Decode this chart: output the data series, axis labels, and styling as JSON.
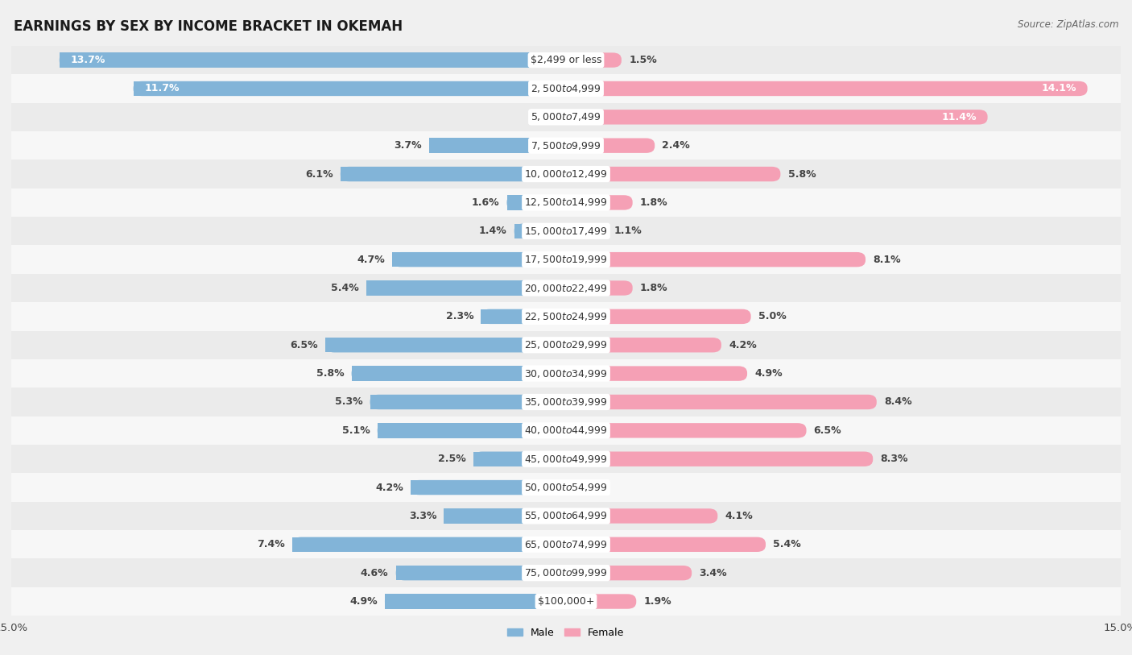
{
  "title": "EARNINGS BY SEX BY INCOME BRACKET IN OKEMAH",
  "source": "Source: ZipAtlas.com",
  "categories": [
    "$2,499 or less",
    "$2,500 to $4,999",
    "$5,000 to $7,499",
    "$7,500 to $9,999",
    "$10,000 to $12,499",
    "$12,500 to $14,999",
    "$15,000 to $17,499",
    "$17,500 to $19,999",
    "$20,000 to $22,499",
    "$22,500 to $24,999",
    "$25,000 to $29,999",
    "$30,000 to $34,999",
    "$35,000 to $39,999",
    "$40,000 to $44,999",
    "$45,000 to $49,999",
    "$50,000 to $54,999",
    "$55,000 to $64,999",
    "$65,000 to $74,999",
    "$75,000 to $99,999",
    "$100,000+"
  ],
  "male_values": [
    13.7,
    11.7,
    0.0,
    3.7,
    6.1,
    1.6,
    1.4,
    4.7,
    5.4,
    2.3,
    6.5,
    5.8,
    5.3,
    5.1,
    2.5,
    4.2,
    3.3,
    7.4,
    4.6,
    4.9
  ],
  "female_values": [
    1.5,
    14.1,
    11.4,
    2.4,
    5.8,
    1.8,
    1.1,
    8.1,
    1.8,
    5.0,
    4.2,
    4.9,
    8.4,
    6.5,
    8.3,
    0.0,
    4.1,
    5.4,
    3.4,
    1.9
  ],
  "male_color": "#82b4d8",
  "female_color": "#f5a0b5",
  "row_color_odd": "#ebebeb",
  "row_color_even": "#f7f7f7",
  "bg_color": "#f0f0f0",
  "xlim": 15.0,
  "bar_height": 0.52,
  "title_fontsize": 12,
  "label_fontsize": 9,
  "cat_fontsize": 9,
  "axis_fontsize": 9.5,
  "source_fontsize": 8.5
}
